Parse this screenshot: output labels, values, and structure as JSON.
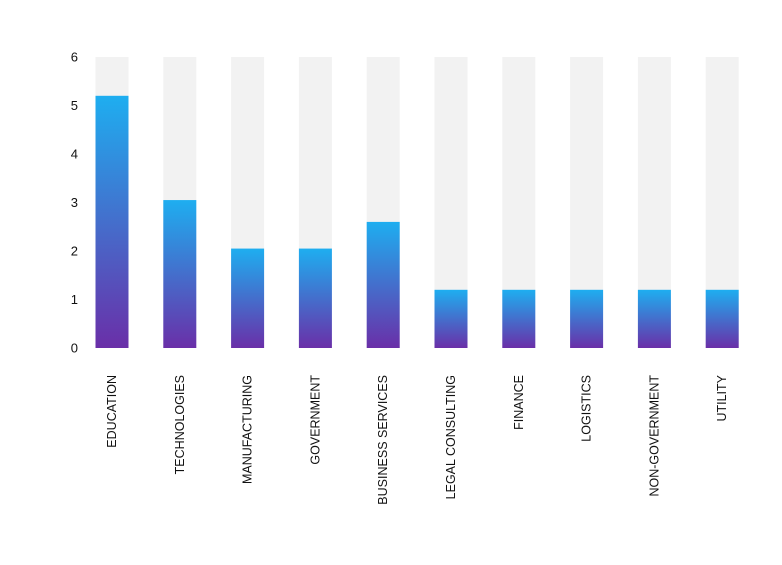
{
  "chart_data": {
    "type": "bar",
    "title": "",
    "xlabel": "",
    "ylabel": "",
    "ylim": [
      0,
      6
    ],
    "yticks": [
      0,
      1,
      2,
      3,
      4,
      5,
      6
    ],
    "grid": false,
    "legend": "none",
    "categories": [
      "EDUCATION",
      "TECHNOLOGIES",
      "MANUFACTURING",
      "GOVERNMENT",
      "BUSINESS SERVICES",
      "LEGAL CONSULTING",
      "FINANCE",
      "LOGISTICS",
      "NON-GOVERNMENT",
      "UTILITY"
    ],
    "series": [
      {
        "values": [
          5.2,
          3.05,
          2.05,
          2.05,
          2.6,
          1.2,
          1.2,
          1.2,
          1.2,
          1.2
        ]
      }
    ],
    "colors": {
      "background_track": "#f2f2f2",
      "bar_top": "#1eaef0",
      "bar_bottom": "#6a2fa8"
    }
  }
}
